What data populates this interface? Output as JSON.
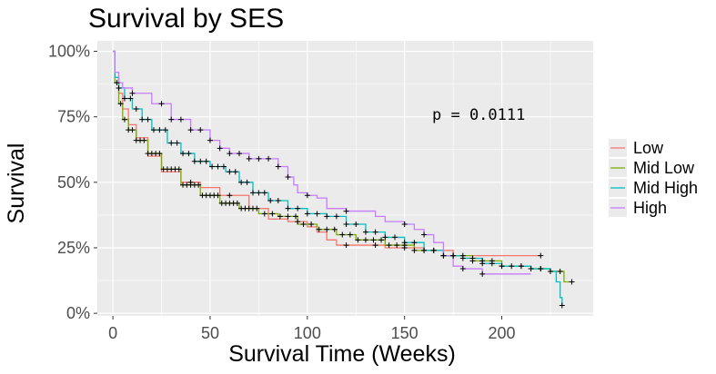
{
  "chart_data": {
    "type": "line",
    "title": "Survival by SES",
    "xlabel": "Survival Time (Weeks)",
    "ylabel": "Survival",
    "xlim": [
      -8,
      247
    ],
    "ylim": [
      -0.01,
      1.04
    ],
    "x_ticks": [
      0,
      50,
      100,
      150,
      200
    ],
    "x_tick_labels": [
      "0",
      "50",
      "100",
      "150",
      "200"
    ],
    "y_ticks": [
      0,
      0.25,
      0.5,
      0.75,
      1.0
    ],
    "y_tick_labels": [
      "0%",
      "25%",
      "50%",
      "75%",
      "100%"
    ],
    "grid": true,
    "legend_position": "right",
    "annotation": "p = 0.0111",
    "series": [
      {
        "name": "Low",
        "color": "#F8766D",
        "points": [
          [
            0,
            1.0
          ],
          [
            1,
            0.9
          ],
          [
            3,
            0.84
          ],
          [
            5,
            0.78
          ],
          [
            8,
            0.72
          ],
          [
            12,
            0.67
          ],
          [
            18,
            0.6
          ],
          [
            25,
            0.54
          ],
          [
            35,
            0.5
          ],
          [
            45,
            0.48
          ],
          [
            55,
            0.45
          ],
          [
            65,
            0.45
          ],
          [
            70,
            0.4
          ],
          [
            75,
            0.4
          ],
          [
            80,
            0.36
          ],
          [
            90,
            0.35
          ],
          [
            100,
            0.33
          ],
          [
            105,
            0.31
          ],
          [
            110,
            0.28
          ],
          [
            115,
            0.26
          ],
          [
            125,
            0.26
          ],
          [
            140,
            0.25
          ],
          [
            160,
            0.24
          ],
          [
            175,
            0.22
          ],
          [
            185,
            0.22
          ],
          [
            220,
            0.22
          ]
        ],
        "censored_x": [
          40,
          60,
          72,
          95,
          120,
          135,
          150,
          175,
          220
        ]
      },
      {
        "name": "Mid Low",
        "color": "#7CAE00",
        "points": [
          [
            0,
            1.0
          ],
          [
            1,
            0.88
          ],
          [
            3,
            0.8
          ],
          [
            5,
            0.74
          ],
          [
            8,
            0.7
          ],
          [
            12,
            0.66
          ],
          [
            18,
            0.61
          ],
          [
            25,
            0.55
          ],
          [
            35,
            0.49
          ],
          [
            45,
            0.45
          ],
          [
            55,
            0.42
          ],
          [
            65,
            0.4
          ],
          [
            75,
            0.38
          ],
          [
            85,
            0.37
          ],
          [
            95,
            0.34
          ],
          [
            105,
            0.32
          ],
          [
            115,
            0.3
          ],
          [
            125,
            0.28
          ],
          [
            140,
            0.26
          ],
          [
            155,
            0.24
          ],
          [
            170,
            0.22
          ],
          [
            185,
            0.2
          ],
          [
            200,
            0.18
          ],
          [
            215,
            0.17
          ],
          [
            225,
            0.16
          ],
          [
            232,
            0.12
          ],
          [
            236,
            0.12
          ]
        ],
        "censored_x": [
          2,
          4,
          6,
          8,
          10,
          12,
          14,
          16,
          18,
          20,
          22,
          24,
          26,
          28,
          30,
          32,
          34,
          36,
          38,
          40,
          42,
          44,
          46,
          48,
          50,
          52,
          54,
          56,
          58,
          60,
          62,
          64,
          66,
          68,
          70,
          74,
          78,
          82,
          86,
          90,
          94,
          98,
          102,
          106,
          110,
          114,
          118,
          122,
          126,
          130,
          134,
          138,
          142,
          146,
          150,
          155,
          160,
          165,
          170,
          175,
          180,
          185,
          190,
          195,
          200,
          205,
          210,
          215,
          220,
          225,
          230,
          236
        ]
      },
      {
        "name": "Mid High",
        "color": "#00BFC4",
        "points": [
          [
            0,
            1.0
          ],
          [
            1,
            0.9
          ],
          [
            3,
            0.86
          ],
          [
            6,
            0.82
          ],
          [
            10,
            0.78
          ],
          [
            15,
            0.74
          ],
          [
            20,
            0.7
          ],
          [
            28,
            0.65
          ],
          [
            35,
            0.61
          ],
          [
            42,
            0.58
          ],
          [
            50,
            0.56
          ],
          [
            58,
            0.54
          ],
          [
            65,
            0.5
          ],
          [
            72,
            0.46
          ],
          [
            80,
            0.43
          ],
          [
            90,
            0.4
          ],
          [
            100,
            0.38
          ],
          [
            110,
            0.37
          ],
          [
            120,
            0.34
          ],
          [
            130,
            0.31
          ],
          [
            140,
            0.29
          ],
          [
            150,
            0.27
          ],
          [
            160,
            0.24
          ],
          [
            170,
            0.22
          ],
          [
            180,
            0.21
          ],
          [
            190,
            0.19
          ],
          [
            200,
            0.18
          ],
          [
            215,
            0.17
          ],
          [
            225,
            0.16
          ],
          [
            228,
            0.12
          ],
          [
            230,
            0.06
          ],
          [
            231,
            0.03
          ]
        ],
        "censored_x": [
          3,
          6,
          9,
          12,
          15,
          18,
          21,
          24,
          27,
          30,
          33,
          36,
          39,
          42,
          45,
          48,
          51,
          54,
          57,
          60,
          63,
          66,
          69,
          72,
          75,
          78,
          81,
          85,
          90,
          95,
          100,
          105,
          110,
          115,
          120,
          125,
          130,
          135,
          140,
          145,
          150,
          155,
          160,
          165,
          170,
          175,
          180,
          185,
          190,
          195,
          200,
          210,
          220,
          231
        ]
      },
      {
        "name": "High",
        "color": "#C77CFF",
        "points": [
          [
            0,
            1.0
          ],
          [
            1,
            0.92
          ],
          [
            3,
            0.88
          ],
          [
            5,
            0.86
          ],
          [
            10,
            0.84
          ],
          [
            20,
            0.8
          ],
          [
            30,
            0.74
          ],
          [
            40,
            0.7
          ],
          [
            50,
            0.66
          ],
          [
            55,
            0.63
          ],
          [
            60,
            0.61
          ],
          [
            70,
            0.59
          ],
          [
            80,
            0.59
          ],
          [
            85,
            0.56
          ],
          [
            90,
            0.52
          ],
          [
            93,
            0.49
          ],
          [
            95,
            0.46
          ],
          [
            100,
            0.45
          ],
          [
            105,
            0.44
          ],
          [
            110,
            0.4
          ],
          [
            120,
            0.39
          ],
          [
            135,
            0.37
          ],
          [
            140,
            0.35
          ],
          [
            150,
            0.34
          ],
          [
            155,
            0.32
          ],
          [
            160,
            0.3
          ],
          [
            165,
            0.27
          ],
          [
            170,
            0.22
          ],
          [
            175,
            0.18
          ],
          [
            180,
            0.17
          ],
          [
            190,
            0.15
          ],
          [
            200,
            0.15
          ],
          [
            215,
            0.15
          ]
        ],
        "censored_x": [
          10,
          25,
          30,
          35,
          40,
          45,
          50,
          55,
          60,
          65,
          70,
          75,
          80,
          85,
          90,
          100,
          120,
          150,
          160,
          170,
          180,
          190
        ]
      }
    ]
  }
}
